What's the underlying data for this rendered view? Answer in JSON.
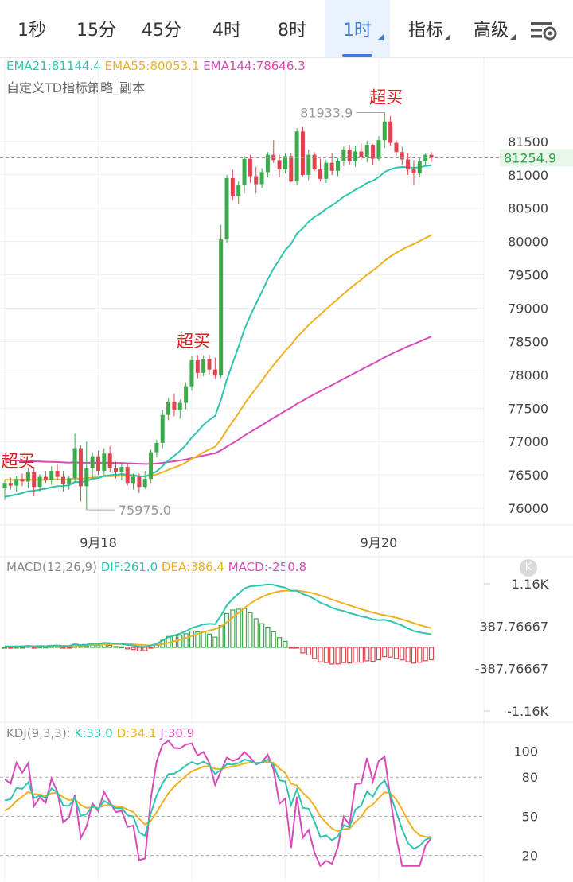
{
  "tabs": [
    {
      "label": "1秒",
      "active": false,
      "dropdown": false
    },
    {
      "label": "15分",
      "active": false,
      "dropdown": false
    },
    {
      "label": "45分",
      "active": false,
      "dropdown": false
    },
    {
      "label": "4时",
      "active": false,
      "dropdown": false
    },
    {
      "label": "8时",
      "active": false,
      "dropdown": false
    },
    {
      "label": "1时",
      "active": true,
      "dropdown": true
    },
    {
      "label": "指标",
      "active": false,
      "dropdown": true
    },
    {
      "label": "高级",
      "active": false,
      "dropdown": true
    }
  ],
  "settings_icon": "chart-settings-icon",
  "legend": {
    "ema21": "EMA21:81144.4",
    "ema55": "EMA55:80053.1",
    "ema144": "EMA144:78646.3",
    "strategy": "自定义TD指标策略_副本"
  },
  "macd_legend": {
    "name": "MACD(12,26,9)",
    "dif": "DIF:261.0",
    "dea": "DEA:386.4",
    "macd": "MACD:-250.8"
  },
  "kdj_legend": {
    "name": "KDJ(9,3,3):",
    "k": "K:33.0",
    "d": "D:34.1",
    "j": "J:30.9"
  },
  "k_button": "K",
  "colors": {
    "up": "#3aaa4a",
    "down": "#e0454f",
    "ema21": "#2ec4b0",
    "ema55": "#f0b020",
    "ema144": "#d84ab8",
    "signal": "#e02020",
    "grid": "#eeeeee",
    "dash": "#999999",
    "current_bg": "#e8f6ea",
    "current_text": "#2e9e45"
  },
  "chart_data": [
    {
      "type": "candlestick",
      "ylim": [
        75750,
        82250
      ],
      "yticks": [
        76000,
        76500,
        77000,
        77500,
        78000,
        78500,
        79000,
        79500,
        80000,
        80500,
        81000,
        81500
      ],
      "xticks": [
        {
          "label": "9月18",
          "index": 16
        },
        {
          "label": "9月20",
          "index": 64
        }
      ],
      "current_price": "81254.9",
      "current_value": 81254.9,
      "high_label": "81933.9",
      "low_label": "75975.0",
      "signals": [
        {
          "label": "超买",
          "index": 2
        },
        {
          "label": "超买",
          "index": 32
        },
        {
          "label": "超买",
          "index": 65
        }
      ],
      "candles": [
        [
          76300,
          76420,
          76120,
          76380
        ],
        [
          76380,
          76460,
          76280,
          76340
        ],
        [
          76340,
          76480,
          76240,
          76440
        ],
        [
          76440,
          76520,
          76330,
          76400
        ],
        [
          76400,
          76610,
          76300,
          76540
        ],
        [
          76540,
          76620,
          76180,
          76320
        ],
        [
          76320,
          76510,
          76250,
          76470
        ],
        [
          76470,
          76560,
          76380,
          76420
        ],
        [
          76420,
          76630,
          76350,
          76560
        ],
        [
          76560,
          76650,
          76420,
          76470
        ],
        [
          76470,
          76560,
          76250,
          76360
        ],
        [
          76360,
          76480,
          76280,
          76450
        ],
        [
          76450,
          77120,
          76380,
          76900
        ],
        [
          76900,
          76940,
          76100,
          76330
        ],
        [
          76330,
          77000,
          75975,
          76600
        ],
        [
          76600,
          76840,
          76450,
          76780
        ],
        [
          76780,
          76860,
          76500,
          76560
        ],
        [
          76560,
          76900,
          76480,
          76820
        ],
        [
          76820,
          76930,
          76540,
          76600
        ],
        [
          76600,
          76700,
          76450,
          76550
        ],
        [
          76550,
          76660,
          76420,
          76620
        ],
        [
          76620,
          76660,
          76340,
          76380
        ],
        [
          76380,
          76520,
          76280,
          76470
        ],
        [
          76470,
          76520,
          76230,
          76320
        ],
        [
          76320,
          76560,
          76290,
          76440
        ],
        [
          76440,
          76880,
          76380,
          76840
        ],
        [
          76840,
          77030,
          76760,
          76980
        ],
        [
          76980,
          77480,
          76900,
          77400
        ],
        [
          77400,
          77650,
          77320,
          77600
        ],
        [
          77600,
          77720,
          77380,
          77470
        ],
        [
          77470,
          77630,
          77340,
          77580
        ],
        [
          77580,
          77890,
          77480,
          77830
        ],
        [
          77830,
          78280,
          77760,
          78220
        ],
        [
          78220,
          78300,
          77950,
          78030
        ],
        [
          78030,
          78290,
          77980,
          78240
        ],
        [
          78240,
          78300,
          78010,
          78080
        ],
        [
          78080,
          78260,
          77940,
          77990
        ],
        [
          77990,
          80250,
          77950,
          80030
        ],
        [
          80030,
          81000,
          79980,
          80950
        ],
        [
          80950,
          81080,
          80620,
          80680
        ],
        [
          80680,
          80900,
          80560,
          80850
        ],
        [
          80850,
          81280,
          80720,
          81240
        ],
        [
          81240,
          81300,
          80880,
          80980
        ],
        [
          80980,
          81120,
          80720,
          80860
        ],
        [
          80860,
          81100,
          80800,
          81040
        ],
        [
          81040,
          81340,
          80960,
          81300
        ],
        [
          81300,
          81520,
          81180,
          81220
        ],
        [
          81220,
          81300,
          80960,
          81080
        ],
        [
          81080,
          81320,
          81020,
          81280
        ],
        [
          81280,
          81330,
          80890,
          80900
        ],
        [
          80900,
          81700,
          80850,
          81650
        ],
        [
          81650,
          81720,
          80980,
          81000
        ],
        [
          81000,
          81380,
          80920,
          81300
        ],
        [
          81300,
          81340,
          81060,
          81080
        ],
        [
          81080,
          81240,
          80900,
          80940
        ],
        [
          80940,
          81220,
          80880,
          81180
        ],
        [
          81180,
          81330,
          81000,
          81060
        ],
        [
          81060,
          81250,
          80980,
          81200
        ],
        [
          81200,
          81420,
          81130,
          81380
        ],
        [
          81380,
          81450,
          81150,
          81200
        ],
        [
          81200,
          81430,
          81120,
          81350
        ],
        [
          81350,
          81470,
          81230,
          81260
        ],
        [
          81260,
          81510,
          81190,
          81450
        ],
        [
          81450,
          81460,
          81140,
          81240
        ],
        [
          81240,
          81580,
          81210,
          81520
        ],
        [
          81520,
          81934,
          81400,
          81800
        ],
        [
          81800,
          81880,
          81440,
          81480
        ],
        [
          81480,
          81520,
          81280,
          81340
        ],
        [
          81340,
          81420,
          81150,
          81230
        ],
        [
          81230,
          81330,
          81000,
          81080
        ],
        [
          81080,
          81220,
          80850,
          81020
        ],
        [
          81020,
          81260,
          80960,
          81200
        ],
        [
          81200,
          81330,
          81140,
          81300
        ],
        [
          81300,
          81340,
          81190,
          81255
        ]
      ]
    },
    {
      "type": "macd_histogram",
      "ylim": [
        -1160,
        1160
      ],
      "ytick_labels": [
        "1.16K",
        "387.76667",
        "-387.76667",
        "-1.16K"
      ],
      "ytick_values": [
        1160,
        387.76667,
        -387.76667,
        -1160
      ]
    },
    {
      "type": "kdj",
      "ylim": [
        10,
        110
      ],
      "yticks": [
        20,
        50,
        80,
        100
      ]
    }
  ]
}
